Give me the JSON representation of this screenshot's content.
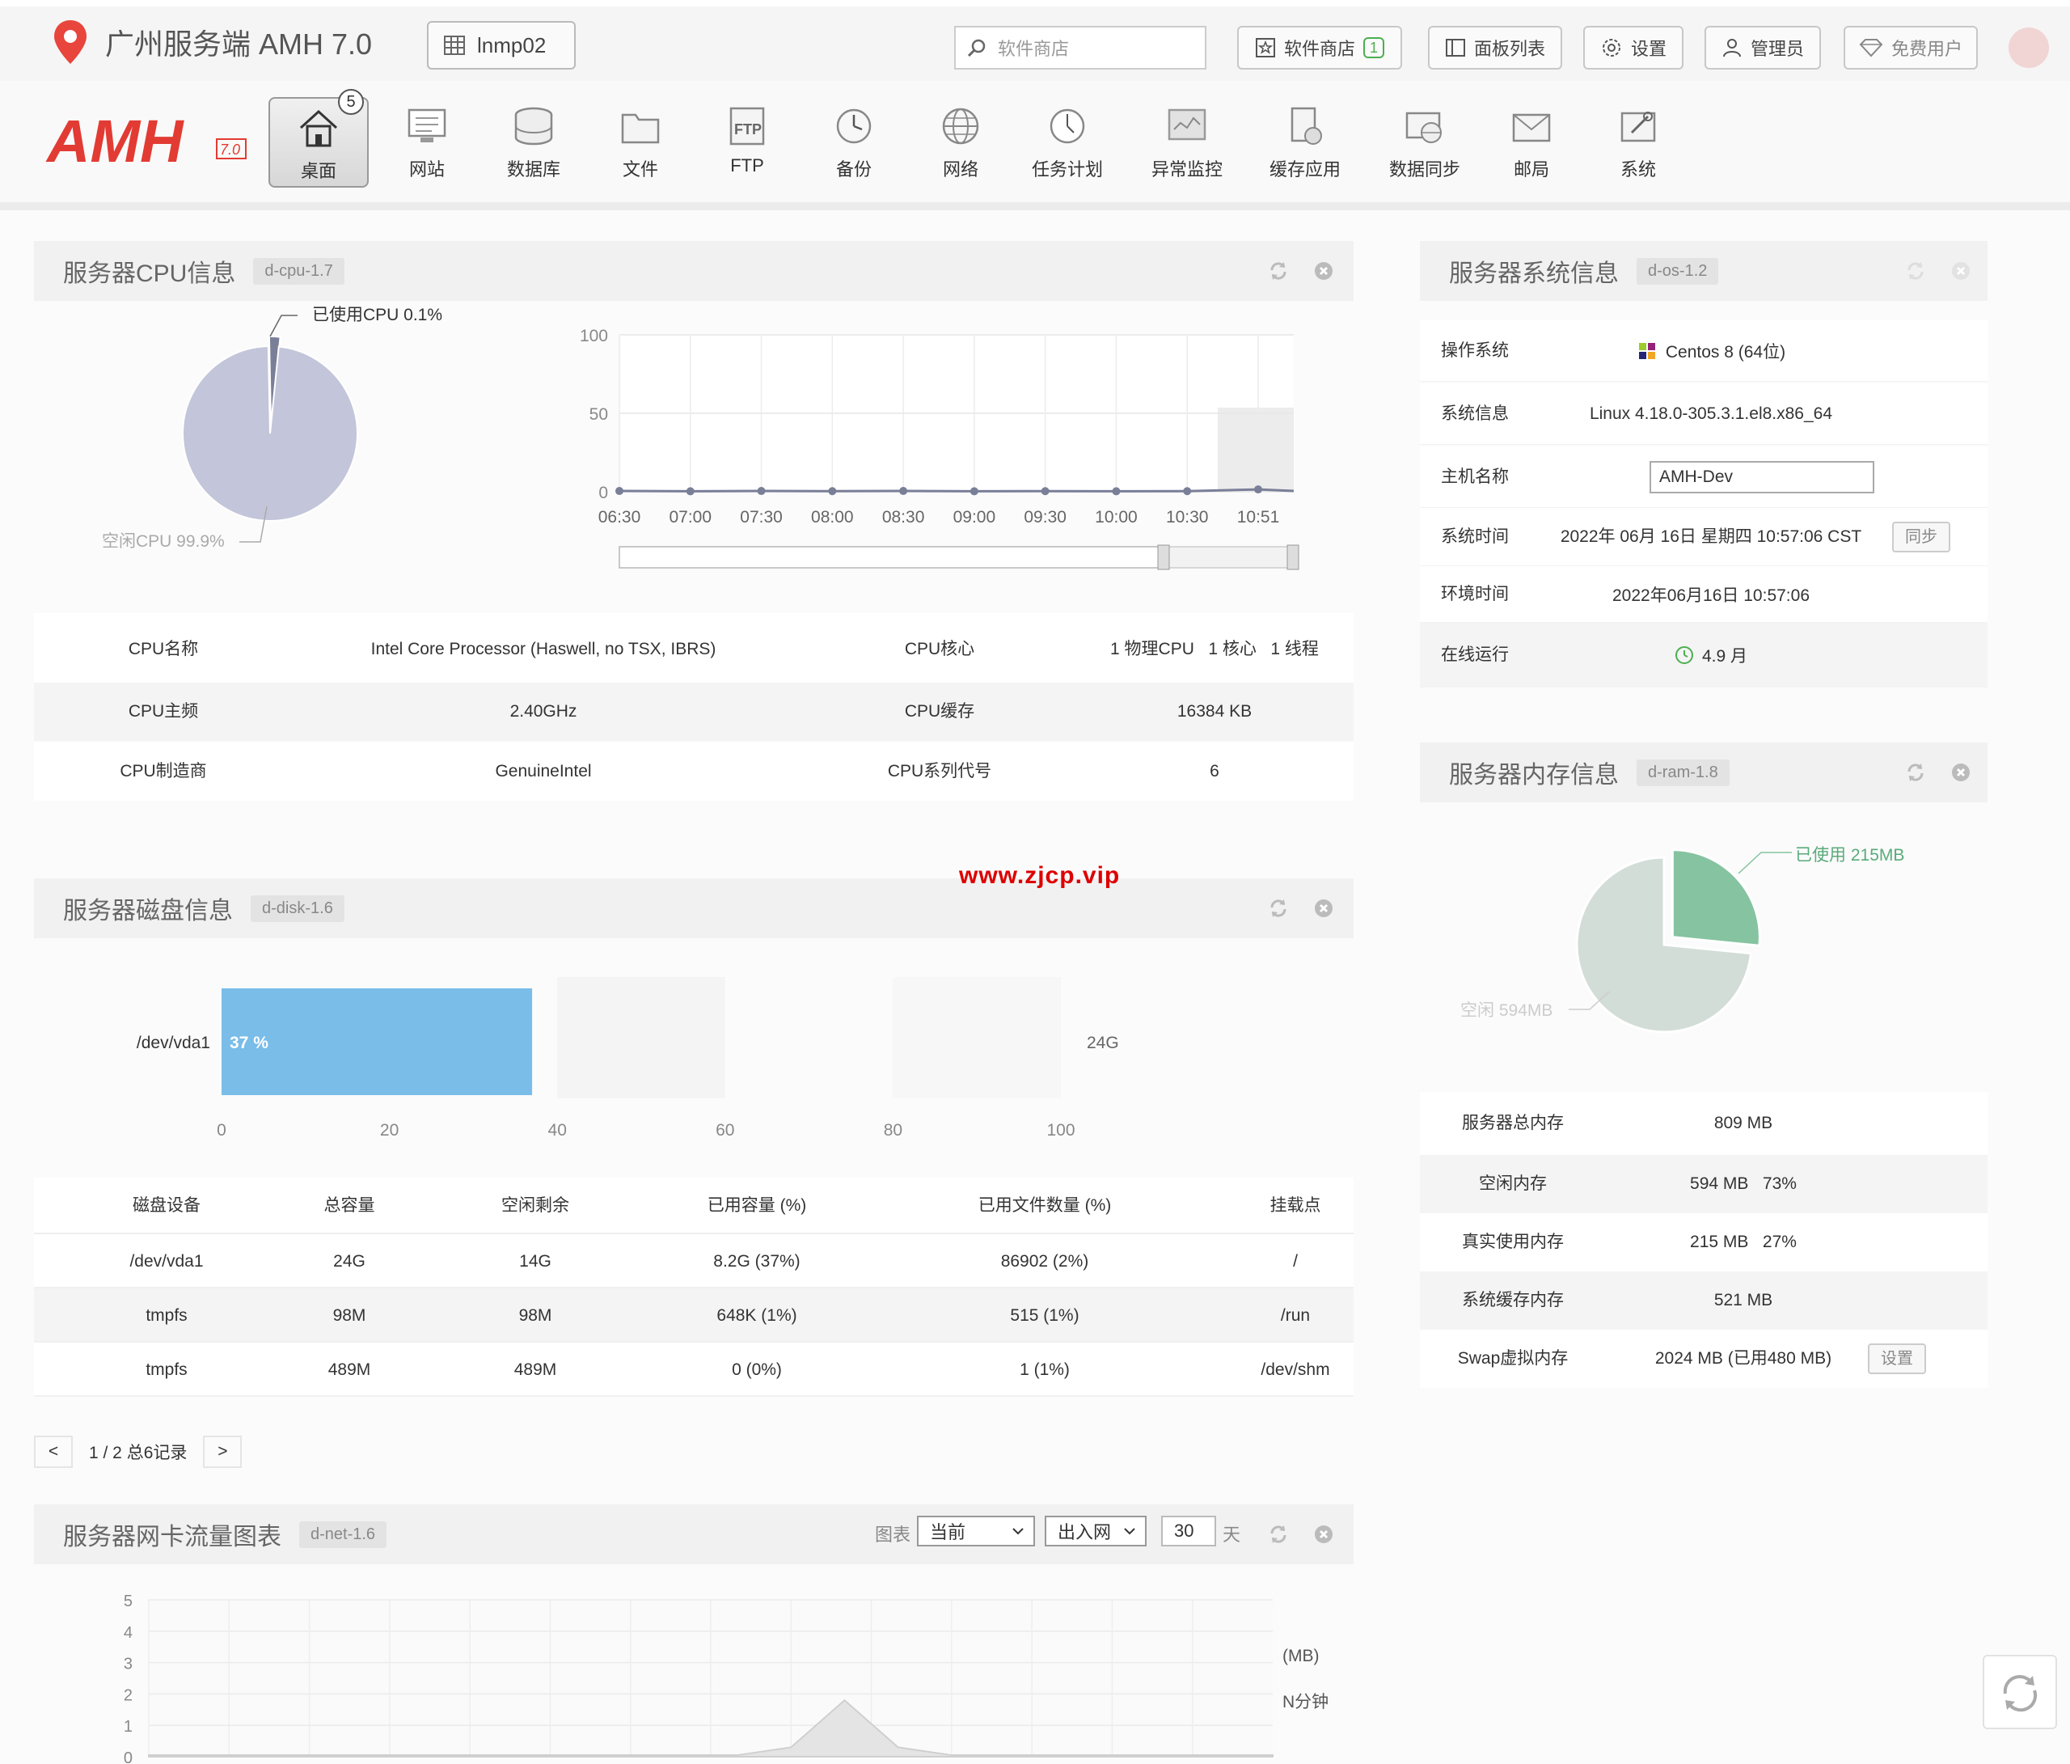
{
  "app": {
    "title": "广州服务端 AMH 7.0",
    "host": "lnmp02"
  },
  "topbar": {
    "search_placeholder": "软件商店",
    "store_label": "软件商店",
    "store_count": "1",
    "panels_label": "面板列表",
    "settings_label": "设置",
    "admin_label": "管理员",
    "plan_label": "免费用户"
  },
  "logo": {
    "text": "AMH",
    "version": "7.0"
  },
  "nav": {
    "badge": "5",
    "items": [
      {
        "label": "桌面",
        "icon": "home-icon"
      },
      {
        "label": "网站",
        "icon": "monitor-icon"
      },
      {
        "label": "数据库",
        "icon": "database-icon"
      },
      {
        "label": "文件",
        "icon": "folder-icon"
      },
      {
        "label": "FTP",
        "icon": "ftp-icon"
      },
      {
        "label": "备份",
        "icon": "clock-icon"
      },
      {
        "label": "网络",
        "icon": "globe-icon"
      },
      {
        "label": "任务计划",
        "icon": "schedule-icon"
      },
      {
        "label": "异常监控",
        "icon": "monitor-alert-icon"
      },
      {
        "label": "缓存应用",
        "icon": "cache-icon"
      },
      {
        "label": "数据同步",
        "icon": "sync-icon"
      },
      {
        "label": "邮局",
        "icon": "mail-icon"
      },
      {
        "label": "系统",
        "icon": "system-icon"
      }
    ]
  },
  "cpu": {
    "title": "服务器CPU信息",
    "tag": "d-cpu-1.7",
    "used_label": "已使用CPU 0.1%",
    "idle_label": "空闲CPU 99.9%",
    "rows": [
      {
        "k1": "CPU名称",
        "v1": "Intel Core Processor (Haswell, no TSX, IBRS)",
        "k2": "CPU核心",
        "v2": "1 物理CPU   1 核心   1 线程"
      },
      {
        "k1": "CPU主频",
        "v1": "2.40GHz",
        "k2": "CPU缓存",
        "v2": "16384 KB"
      },
      {
        "k1": "CPU制造商",
        "v1": "GenuineIntel",
        "k2": "CPU系列代号",
        "v2": "6"
      }
    ]
  },
  "disk": {
    "title": "服务器磁盘信息",
    "tag": "d-disk-1.6",
    "bar_device": "/dev/vda1",
    "bar_label": "37 %",
    "bar_total": "24G",
    "headers": [
      "磁盘设备",
      "总容量",
      "空闲剩余",
      "已用容量 (%)",
      "已用文件数量 (%)",
      "挂载点"
    ],
    "rows": [
      [
        "/dev/vda1",
        "24G",
        "14G",
        "8.2G (37%)",
        "86902 (2%)",
        "/"
      ],
      [
        "tmpfs",
        "98M",
        "98M",
        "648K (1%)",
        "515 (1%)",
        "/run"
      ],
      [
        "tmpfs",
        "489M",
        "489M",
        "0 (0%)",
        "1 (1%)",
        "/dev/shm"
      ]
    ],
    "pager_prev": "<",
    "pager_text": "1 / 2 总6记录",
    "pager_next": ">"
  },
  "net": {
    "title": "服务器网卡流量图表",
    "tag": "d-net-1.6",
    "chart_label": "图表",
    "range_value": "当前",
    "direction_value": "出入网",
    "days_value": "30",
    "days_unit": "天",
    "unit_label": "(MB)",
    "period_label": "N分钟"
  },
  "os": {
    "title": "服务器系统信息",
    "tag": "d-os-1.2",
    "rows": [
      {
        "k": "操作系统",
        "v": "Centos 8 (64位)"
      },
      {
        "k": "系统信息",
        "v": "Linux 4.18.0-305.3.1.el8.x86_64"
      },
      {
        "k": "主机名称",
        "v": "AMH-Dev"
      },
      {
        "k": "系统时间",
        "v": "2022年 06月 16日 星期四 10:57:06 CST"
      },
      {
        "k": "环境时间",
        "v": "2022年06月16日 10:57:06"
      },
      {
        "k": "在线运行",
        "v": "4.9 月"
      }
    ],
    "sync_label": "同步"
  },
  "ram": {
    "title": "服务器内存信息",
    "tag": "d-ram-1.8",
    "used_label": "已使用 215MB",
    "free_label": "空闲 594MB",
    "rows": [
      {
        "k": "服务器总内存",
        "v": "809 MB"
      },
      {
        "k": "空闲内存",
        "v": "594 MB   73%"
      },
      {
        "k": "真实使用内存",
        "v": "215 MB   27%"
      },
      {
        "k": "系统缓存内存",
        "v": "521 MB"
      },
      {
        "k": "Swap虚拟内存",
        "v": "2024 MB (已用480 MB)"
      }
    ],
    "set_label": "设置"
  },
  "watermark": "www.zjcp.vip",
  "chart_data": [
    {
      "type": "pie",
      "categories": [
        "已使用CPU",
        "空闲CPU"
      ],
      "values": [
        0.1,
        99.9
      ],
      "colors": [
        "#7a7f98",
        "#c3c6da"
      ]
    },
    {
      "type": "line",
      "x": [
        "06:30",
        "07:00",
        "07:30",
        "08:00",
        "08:30",
        "09:00",
        "09:30",
        "10:00",
        "10:30",
        "10:51"
      ],
      "series": [
        {
          "values": [
            0.5,
            0.3,
            0.5,
            0.4,
            0.5,
            0.3,
            0.4,
            0.3,
            0.4,
            1.5
          ]
        }
      ],
      "yticks": [
        0,
        50,
        100
      ],
      "ylim": [
        0,
        100
      ],
      "grid": true
    },
    {
      "type": "bar",
      "categories": [
        "/dev/vda1"
      ],
      "values": [
        37
      ],
      "orientation": "horizontal",
      "xticks": [
        0,
        20,
        40,
        60,
        80,
        100
      ],
      "xlim": [
        0,
        100
      ],
      "color": "#79bde8"
    },
    {
      "type": "pie",
      "categories": [
        "已使用",
        "空闲"
      ],
      "values": [
        215,
        594
      ],
      "colors": [
        "#86c3a0",
        "#d3ddd7"
      ]
    },
    {
      "type": "area",
      "yticks": [
        0,
        1,
        2,
        3,
        4,
        5
      ],
      "ylim": [
        0,
        5
      ],
      "series": [
        {
          "values": [
            0.05,
            0.05,
            0.05,
            0.05,
            0.05,
            0.05,
            0.05,
            0.05,
            0.05,
            0.05,
            0.05,
            0.05,
            0.3,
            1.8,
            0.3,
            0.05,
            0.05,
            0.05,
            0.05,
            0.05,
            0.05,
            0.05
          ]
        }
      ],
      "grid": true
    }
  ]
}
